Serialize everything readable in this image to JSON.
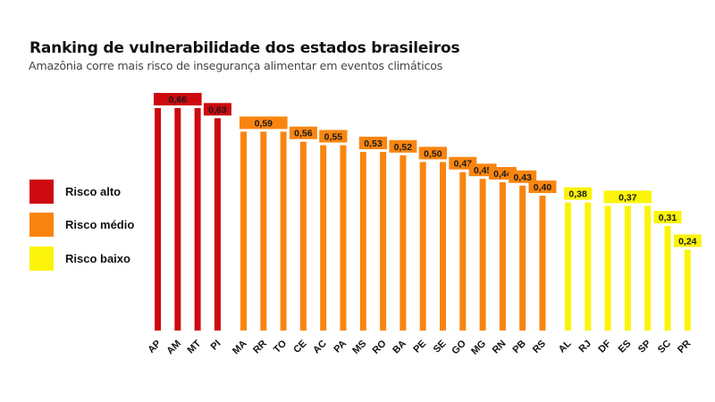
{
  "chart_data": {
    "type": "bar",
    "title": "Ranking de vulnerabilidade dos estados brasileiros",
    "subtitle": "Amazônia corre mais risco de insegurança alimentar em eventos climáticos",
    "xlabel": "",
    "ylabel": "",
    "ylim": [
      0,
      0.66
    ],
    "grid": false,
    "legend_position": "left",
    "legend": [
      {
        "key": "alto",
        "label": "Risco alto",
        "color": "#cc0a0f"
      },
      {
        "key": "medio",
        "label": "Risco médio",
        "color": "#f98510"
      },
      {
        "key": "baixo",
        "label": "Risco baixo",
        "color": "#fbf40a"
      }
    ],
    "categories": [
      "AP",
      "AM",
      "MT",
      "PI",
      "MA",
      "RR",
      "TO",
      "CE",
      "AC",
      "PA",
      "MS",
      "RO",
      "BA",
      "PE",
      "SE",
      "GO",
      "MG",
      "RN",
      "PB",
      "RS",
      "AL",
      "RJ",
      "DF",
      "ES",
      "SP",
      "SC",
      "PR"
    ],
    "values": [
      0.66,
      0.66,
      0.66,
      0.63,
      0.59,
      0.59,
      0.59,
      0.56,
      0.55,
      0.55,
      0.53,
      0.53,
      0.52,
      0.5,
      0.5,
      0.47,
      0.45,
      0.44,
      0.43,
      0.4,
      0.38,
      0.38,
      0.37,
      0.37,
      0.37,
      0.31,
      0.24
    ],
    "risk": [
      "alto",
      "alto",
      "alto",
      "alto",
      "medio",
      "medio",
      "medio",
      "medio",
      "medio",
      "medio",
      "medio",
      "medio",
      "medio",
      "medio",
      "medio",
      "medio",
      "medio",
      "medio",
      "medio",
      "medio",
      "baixo",
      "baixo",
      "baixo",
      "baixo",
      "baixo",
      "baixo",
      "baixo"
    ],
    "data_labels": [
      {
        "text": "0,66",
        "from": 0,
        "to": 2,
        "risk": "alto"
      },
      {
        "text": "0,63",
        "from": 3,
        "to": 3,
        "risk": "alto"
      },
      {
        "text": "0,59",
        "from": 4,
        "to": 6,
        "risk": "medio"
      },
      {
        "text": "0,56",
        "from": 7,
        "to": 7,
        "risk": "medio"
      },
      {
        "text": "0,55",
        "from": 8,
        "to": 9,
        "risk": "medio"
      },
      {
        "text": "0,53",
        "from": 10,
        "to": 11,
        "risk": "medio"
      },
      {
        "text": "0,52",
        "from": 12,
        "to": 12,
        "risk": "medio"
      },
      {
        "text": "0,50",
        "from": 13,
        "to": 14,
        "risk": "medio"
      },
      {
        "text": "0,47",
        "from": 15,
        "to": 15,
        "risk": "medio"
      },
      {
        "text": "0,45",
        "from": 16,
        "to": 16,
        "risk": "medio"
      },
      {
        "text": "0,44",
        "from": 17,
        "to": 17,
        "risk": "medio"
      },
      {
        "text": "0,43",
        "from": 18,
        "to": 18,
        "risk": "medio"
      },
      {
        "text": "0,40",
        "from": 19,
        "to": 19,
        "risk": "medio"
      },
      {
        "text": "0,38",
        "from": 20,
        "to": 21,
        "risk": "baixo"
      },
      {
        "text": "0,37",
        "from": 22,
        "to": 24,
        "risk": "baixo"
      },
      {
        "text": "0,31",
        "from": 25,
        "to": 25,
        "risk": "baixo"
      },
      {
        "text": "0,24",
        "from": 26,
        "to": 26,
        "risk": "baixo"
      }
    ]
  }
}
